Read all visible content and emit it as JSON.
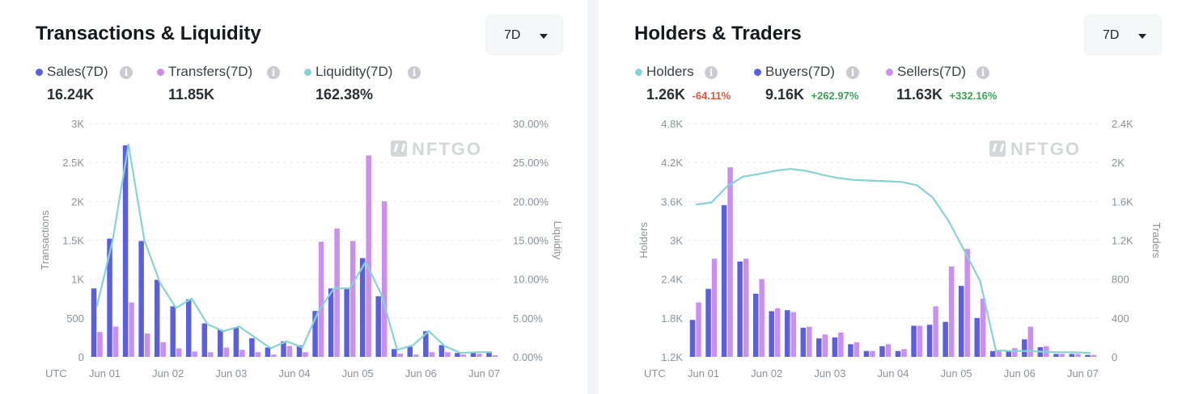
{
  "colors": {
    "sales": "#5a5fe0",
    "transfers": "#cc8ff0",
    "liquidity": "#86d3d6",
    "holders": "#86d3d6",
    "buyers": "#5a5fe0",
    "sellers": "#cc8ff0",
    "negative": "#e0563b",
    "positive": "#3e9f59"
  },
  "left": {
    "title": "Transactions & Liquidity",
    "dropdown_value": "7D",
    "watermark": "NFTGO",
    "legend": [
      {
        "label": "Sales(7D)",
        "value": "16.24K",
        "color_key": "sales"
      },
      {
        "label": "Transfers(7D)",
        "value": "11.85K",
        "color_key": "transfers"
      },
      {
        "label": "Liquidity(7D)",
        "value": "162.38%",
        "color_key": "liquidity"
      }
    ]
  },
  "right": {
    "title": "Holders & Traders",
    "dropdown_value": "7D",
    "watermark": "NFTGO",
    "legend": [
      {
        "label": "Holders",
        "value": "1.26K",
        "change": "-64.11%",
        "color_key": "holders"
      },
      {
        "label": "Buyers(7D)",
        "value": "9.16K",
        "change": "+262.97%",
        "color_key": "buyers"
      },
      {
        "label": "Sellers(7D)",
        "value": "11.63K",
        "change": "+332.16%",
        "color_key": "sellers"
      }
    ]
  },
  "chart_data": [
    {
      "type": "bar",
      "title": "Transactions & Liquidity",
      "ylabel": "Transactions",
      "y2label": "Liquidity",
      "ylim": [
        0,
        3000
      ],
      "y2lim": [
        0,
        30
      ],
      "y_ticks": [
        "0",
        "500",
        "1K",
        "1.5K",
        "2K",
        "2.5K",
        "3K"
      ],
      "y2_ticks": [
        "0.00%",
        "5.00%",
        "10.00%",
        "15.00%",
        "20.00%",
        "25.00%",
        "30.00%"
      ],
      "x_prefix": "UTC",
      "x_ticks": [
        "Jun 01",
        "Jun 02",
        "Jun 03",
        "Jun 04",
        "Jun 05",
        "Jun 06",
        "Jun 07"
      ],
      "grid": true,
      "series": [
        {
          "name": "Sales(7D)",
          "kind": "bar",
          "values": [
            880,
            1520,
            2720,
            1490,
            990,
            650,
            740,
            430,
            350,
            380,
            240,
            120,
            200,
            150,
            590,
            880,
            880,
            1270,
            780,
            100,
            130,
            330,
            150,
            50,
            60,
            60
          ]
        },
        {
          "name": "Transfers(7D)",
          "kind": "bar",
          "values": [
            320,
            390,
            700,
            300,
            190,
            110,
            70,
            60,
            120,
            90,
            60,
            30,
            140,
            60,
            1480,
            1650,
            1490,
            2590,
            2000,
            40,
            30,
            60,
            60,
            30,
            40,
            20
          ]
        },
        {
          "name": "Liquidity(7D)",
          "kind": "line",
          "axis": "right",
          "values": [
            6.5,
            15.0,
            27.3,
            15.0,
            9.5,
            6.3,
            7.5,
            4.2,
            3.3,
            3.9,
            2.5,
            1.1,
            2.0,
            1.2,
            5.8,
            8.8,
            8.8,
            12.2,
            8.0,
            0.9,
            1.5,
            3.3,
            1.4,
            0.5,
            0.6,
            0.6
          ]
        }
      ]
    },
    {
      "type": "bar",
      "title": "Holders & Traders",
      "ylabel": "Holders",
      "y2label": "Traders",
      "ylim": [
        1200,
        4800
      ],
      "y2lim": [
        0,
        2400
      ],
      "y_ticks": [
        "1.2K",
        "1.8K",
        "2.4K",
        "3K",
        "3.6K",
        "4.2K",
        "4.8K"
      ],
      "y2_ticks": [
        "0",
        "400",
        "800",
        "1.2K",
        "1.6K",
        "2K",
        "2.4K"
      ],
      "x_prefix": "UTC",
      "x_ticks": [
        "Jun 01",
        "Jun 02",
        "Jun 03",
        "Jun 04",
        "Jun 05",
        "Jun 06",
        "Jun 07"
      ],
      "grid": true,
      "series": [
        {
          "name": "Buyers(7D)",
          "kind": "bar",
          "axis": "right",
          "values": [
            380,
            700,
            1560,
            980,
            650,
            470,
            480,
            300,
            190,
            200,
            130,
            60,
            110,
            60,
            320,
            330,
            360,
            730,
            400,
            60,
            60,
            180,
            100,
            30,
            30,
            20
          ]
        },
        {
          "name": "Sellers(7D)",
          "kind": "bar",
          "axis": "right",
          "values": [
            560,
            1010,
            1950,
            1010,
            800,
            500,
            460,
            310,
            230,
            250,
            150,
            60,
            130,
            80,
            320,
            520,
            930,
            1110,
            600,
            70,
            90,
            310,
            110,
            30,
            30,
            20
          ]
        },
        {
          "name": "Holders",
          "kind": "line",
          "axis": "left",
          "values": [
            3550,
            3580,
            3830,
            3980,
            4020,
            4070,
            4100,
            4070,
            4010,
            3960,
            3930,
            3920,
            3910,
            3900,
            3850,
            3660,
            3300,
            2840,
            2370,
            1300,
            1290,
            1290,
            1280,
            1270,
            1270,
            1260
          ]
        }
      ]
    }
  ]
}
